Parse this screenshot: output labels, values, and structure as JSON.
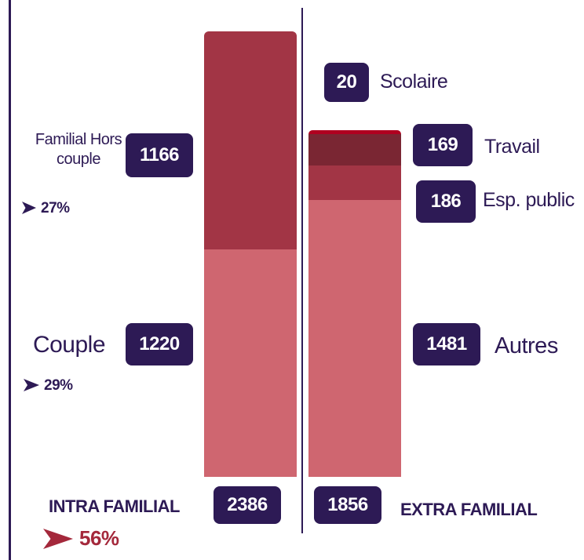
{
  "chart_data": {
    "type": "stacked-bar",
    "bars": [
      {
        "name": "INTRA FAMILIAL",
        "total": 2386,
        "share": "56%",
        "segments": [
          {
            "name": "Couple",
            "value": 1220,
            "share": "29%",
            "color": "#cf6670"
          },
          {
            "name": "Familial Hors couple",
            "value": 1166,
            "share": "27%",
            "color": "#a23545"
          }
        ]
      },
      {
        "name": "EXTRA FAMILIAL",
        "total": 1856,
        "segments": [
          {
            "name": "Autres",
            "value": 1481,
            "color": "#cf6670"
          },
          {
            "name": "Esp. public",
            "value": 186,
            "color": "#a23545"
          },
          {
            "name": "Travail",
            "value": 169,
            "color": "#7a2633"
          },
          {
            "name": "Scolaire",
            "value": 20,
            "color": "#b00020"
          }
        ]
      }
    ]
  }
}
